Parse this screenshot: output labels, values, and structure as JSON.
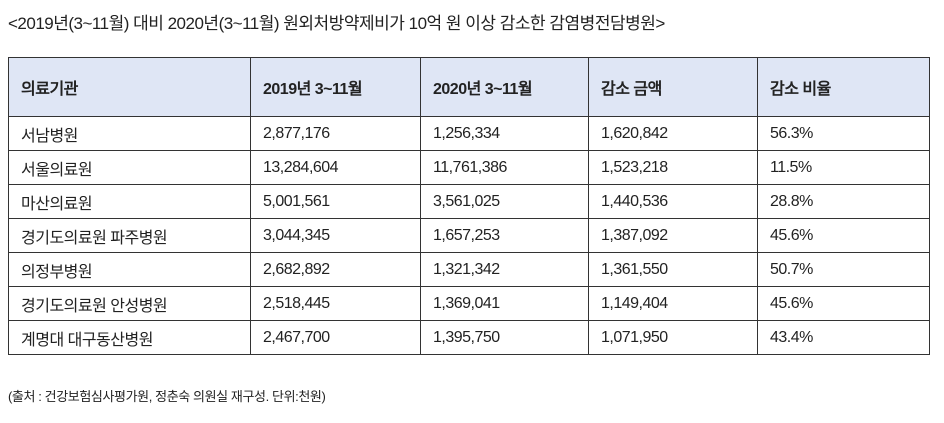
{
  "title": "<2019년(3~11월) 대비 2020년(3~11월) 원외처방약제비가 10억 원 이상 감소한 감염병전담병원>",
  "table": {
    "headers": [
      "의료기관",
      "2019년 3~11월",
      "2020년 3~11월",
      "감소 금액",
      "감소 비율"
    ],
    "rows": [
      [
        "서남병원",
        "2,877,176",
        "1,256,334",
        "1,620,842",
        "56.3%"
      ],
      [
        "서울의료원",
        "13,284,604",
        "11,761,386",
        "1,523,218",
        "11.5%"
      ],
      [
        "마산의료원",
        "5,001,561",
        "3,561,025",
        "1,440,536",
        "28.8%"
      ],
      [
        "경기도의료원 파주병원",
        "3,044,345",
        "1,657,253",
        "1,387,092",
        "45.6%"
      ],
      [
        "의정부병원",
        "2,682,892",
        "1,321,342",
        "1,361,550",
        "50.7%"
      ],
      [
        "경기도의료원 안성병원",
        "2,518,445",
        "1,369,041",
        "1,149,404",
        "45.6%"
      ],
      [
        "계명대 대구동산병원",
        "2,467,700",
        "1,395,750",
        "1,071,950",
        "43.4%"
      ]
    ]
  },
  "note": "(출처 : 건강보험심사평가원, 정춘숙 의원실 재구성. 단위:천원)",
  "colors": {
    "header_bg": "#dfe6f5",
    "border": "#333333"
  }
}
